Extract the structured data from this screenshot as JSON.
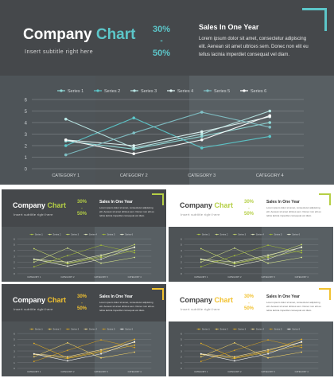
{
  "slides": [
    {
      "id": "main",
      "theme": "dark",
      "accent": "#5cc6c9",
      "title_word1": "Company",
      "title_word2": "Chart",
      "subtitle": "Insert subtitle right here",
      "pct_top": "30%",
      "pct_sep": "-",
      "pct_bottom": "50%",
      "sales_title": "Sales In One Year",
      "body": "Lorem ipsum dolor sit amet, consectetur adipiscing elit. Aenean sit amet ultrices sem. Donec non elit eu tellus lacinia imperdiet consequat vel diam."
    },
    {
      "id": "thumb-green-dark",
      "theme": "dark",
      "accent": "#b5cf45",
      "title_word1": "Company",
      "title_word2": "Chart",
      "subtitle": "Insert subtitle right here",
      "pct_top": "30%",
      "pct_sep": "-",
      "pct_bottom": "50%",
      "sales_title": "Sales In One Year",
      "body": "Lorem ipsum dolor sit amet, consectetur adipiscing elit. Aenean sit amet ultrices sem. Donec non elit eu tellus lacinia imperdiet consequat vel diam."
    },
    {
      "id": "thumb-green-light",
      "theme": "light",
      "accent": "#b5cf45",
      "title_word1": "Company",
      "title_word2": "Chart",
      "subtitle": "Insert subtitle right here",
      "pct_top": "30%",
      "pct_sep": "-",
      "pct_bottom": "50%",
      "sales_title": "Sales In One Year",
      "body": "Lorem ipsum dolor sit amet, consectetur adipiscing elit. Aenean sit amet ultrices sem. Donec non elit eu tellus lacinia imperdiet consequat vel diam."
    },
    {
      "id": "thumb-gold-dark",
      "theme": "dark",
      "accent": "#f2c230",
      "title_word1": "Company",
      "title_word2": "Chart",
      "subtitle": "Insert subtitle right here",
      "pct_top": "30%",
      "pct_sep": "-",
      "pct_bottom": "50%",
      "sales_title": "Sales In One Year",
      "body": "Lorem ipsum dolor sit amet, consectetur adipiscing elit. Aenean sit amet ultrices sem. Donec non elit eu tellus lacinia imperdiet consequat vel diam."
    },
    {
      "id": "thumb-gold-light",
      "theme": "light",
      "accent": "#f2c230",
      "title_word1": "Company",
      "title_word2": "Chart",
      "subtitle": "Insert subtitle right here",
      "pct_top": "30%",
      "pct_sep": "-",
      "pct_bottom": "50%",
      "sales_title": "Sales In One Year",
      "body": "Lorem ipsum dolor sit amet, consectetur adipiscing elit. Aenean sit amet ultrices sem. Donec non elit eu tellus lacinia imperdiet consequat vel diam."
    }
  ],
  "chart_data": {
    "type": "line",
    "categories": [
      "CATEGORY 1",
      "CATEGORY 2",
      "CATEGORY 3",
      "CATEGORY 4"
    ],
    "ylim": [
      0,
      6
    ],
    "yticks": [
      0,
      1,
      2,
      3,
      4,
      5,
      6
    ],
    "grid": true,
    "legend_position": "top",
    "series": [
      {
        "name": "Series 1",
        "values": [
          2.4,
          1.7,
          2.8,
          4.0
        ]
      },
      {
        "name": "Series 2",
        "values": [
          2.0,
          4.4,
          1.8,
          2.8
        ]
      },
      {
        "name": "Series 3",
        "values": [
          4.3,
          1.8,
          3.0,
          5.0
        ]
      },
      {
        "name": "Series 4",
        "values": [
          2.5,
          2.0,
          3.2,
          4.5
        ]
      },
      {
        "name": "Series 5",
        "values": [
          1.2,
          3.1,
          4.9,
          3.6
        ]
      },
      {
        "name": "Series 6",
        "values": [
          2.5,
          1.3,
          2.5,
          4.6
        ]
      }
    ]
  }
}
